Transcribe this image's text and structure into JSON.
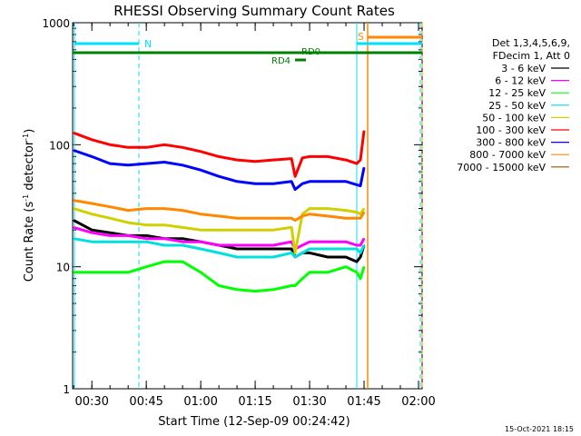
{
  "chart_data": {
    "type": "line",
    "title": "RHESSI Observing Summary Count Rates",
    "xlabel": "Start Time (12-Sep-09 00:24:42)",
    "ylabel_main": "Count Rate (s",
    "ylabel_sup1": "-1",
    "ylabel_mid": " detector",
    "ylabel_sup2": "-1",
    "ylabel_end": ")",
    "yscale": "log",
    "ylim": [
      1,
      1000
    ],
    "xlim": [
      "00:24:42",
      "02:01:00"
    ],
    "x_ticks": [
      "00:30",
      "00:45",
      "01:00",
      "01:15",
      "01:30",
      "01:45",
      "02:00"
    ],
    "y_ticks": [
      "1",
      "10",
      "100",
      "1000"
    ],
    "legend_position": "top-right",
    "legend_header": [
      "Det 1,3,4,5,6,9,",
      "FDecim 1, Att 0"
    ],
    "series": [
      {
        "name": "3 - 6 keV",
        "color": "#000000",
        "x": [
          "00:25",
          "00:30",
          "00:35",
          "00:40",
          "00:45",
          "00:50",
          "00:55",
          "01:00",
          "01:05",
          "01:10",
          "01:15",
          "01:20",
          "01:25",
          "01:26",
          "01:28",
          "01:30",
          "01:35",
          "01:40",
          "01:43",
          "01:44",
          "01:45"
        ],
        "y": [
          24,
          20,
          19,
          18,
          18,
          17,
          17,
          16,
          15,
          14,
          14,
          14,
          14,
          12,
          13,
          13,
          12,
          12,
          11,
          12,
          15
        ]
      },
      {
        "name": "6 - 12 keV",
        "color": "#ff00ff",
        "x": [
          "00:25",
          "00:30",
          "00:35",
          "00:40",
          "00:45",
          "00:50",
          "00:55",
          "01:00",
          "01:05",
          "01:10",
          "01:15",
          "01:20",
          "01:25",
          "01:26",
          "01:28",
          "01:30",
          "01:35",
          "01:40",
          "01:43",
          "01:44",
          "01:45"
        ],
        "y": [
          21,
          19,
          18,
          18,
          17,
          17,
          16,
          16,
          15,
          15,
          15,
          15,
          16,
          14,
          15,
          16,
          16,
          16,
          15,
          15,
          17
        ]
      },
      {
        "name": "12 - 25 keV",
        "color": "#00ff00",
        "x": [
          "00:25",
          "00:30",
          "00:35",
          "00:40",
          "00:45",
          "00:50",
          "00:55",
          "01:00",
          "01:05",
          "01:10",
          "01:15",
          "01:20",
          "01:25",
          "01:26",
          "01:28",
          "01:30",
          "01:35",
          "01:40",
          "01:43",
          "01:44",
          "01:45"
        ],
        "y": [
          9,
          9,
          9,
          9,
          10,
          11,
          11,
          9,
          7,
          6.5,
          6.3,
          6.5,
          7,
          7,
          8,
          9,
          9,
          10,
          9,
          8,
          10
        ]
      },
      {
        "name": "25 - 50 keV",
        "color": "#00e0e0",
        "x": [
          "00:25",
          "00:30",
          "00:35",
          "00:40",
          "00:45",
          "00:50",
          "00:55",
          "01:00",
          "01:05",
          "01:10",
          "01:15",
          "01:20",
          "01:25",
          "01:26",
          "01:28",
          "01:30",
          "01:35",
          "01:40",
          "01:43",
          "01:44",
          "01:45"
        ],
        "y": [
          17,
          16,
          16,
          16,
          16,
          15,
          15,
          14,
          13,
          12,
          12,
          12,
          13,
          12,
          13,
          14,
          14,
          14,
          14,
          13,
          15
        ]
      },
      {
        "name": "50 - 100 keV",
        "color": "#d0d000",
        "x": [
          "00:25",
          "00:30",
          "00:35",
          "00:40",
          "00:45",
          "00:50",
          "00:55",
          "01:00",
          "01:05",
          "01:10",
          "01:15",
          "01:20",
          "01:25",
          "01:26",
          "01:28",
          "01:30",
          "01:35",
          "01:40",
          "01:43",
          "01:44",
          "01:45"
        ],
        "y": [
          30,
          27,
          25,
          23,
          22,
          22,
          21,
          20,
          20,
          20,
          20,
          20,
          21,
          13,
          27,
          30,
          30,
          29,
          28,
          27,
          30
        ]
      },
      {
        "name": "100 - 300 keV",
        "color": "#ff0000",
        "x": [
          "00:25",
          "00:30",
          "00:35",
          "00:40",
          "00:45",
          "00:50",
          "00:55",
          "01:00",
          "01:05",
          "01:10",
          "01:15",
          "01:20",
          "01:25",
          "01:26",
          "01:28",
          "01:30",
          "01:35",
          "01:40",
          "01:43",
          "01:44",
          "01:45"
        ],
        "y": [
          125,
          110,
          100,
          95,
          95,
          100,
          95,
          88,
          80,
          75,
          73,
          75,
          77,
          55,
          78,
          80,
          80,
          75,
          70,
          75,
          130
        ]
      },
      {
        "name": "300 - 800 keV",
        "color": "#0000ff",
        "x": [
          "00:25",
          "00:30",
          "00:35",
          "00:40",
          "00:45",
          "00:50",
          "00:55",
          "01:00",
          "01:05",
          "01:10",
          "01:15",
          "01:20",
          "01:25",
          "01:26",
          "01:28",
          "01:30",
          "01:35",
          "01:40",
          "01:43",
          "01:44",
          "01:45"
        ],
        "y": [
          90,
          80,
          70,
          68,
          70,
          72,
          68,
          62,
          55,
          50,
          48,
          48,
          50,
          43,
          48,
          50,
          50,
          50,
          47,
          46,
          65
        ]
      },
      {
        "name": "800 - 7000 keV",
        "color": "#ff8800",
        "x": [
          "00:25",
          "00:30",
          "00:35",
          "00:40",
          "00:45",
          "00:50",
          "00:55",
          "01:00",
          "01:05",
          "01:10",
          "01:15",
          "01:20",
          "01:25",
          "01:26",
          "01:28",
          "01:30",
          "01:35",
          "01:40",
          "01:43",
          "01:44",
          "01:45"
        ],
        "y": [
          35,
          33,
          31,
          29,
          30,
          30,
          29,
          27,
          26,
          25,
          25,
          25,
          25,
          24,
          26,
          27,
          26,
          25,
          25,
          25,
          28
        ]
      },
      {
        "name": "7000 - 15000 keV",
        "color": "#a05000",
        "x": [],
        "y": []
      }
    ],
    "annotations": [
      {
        "text": "N",
        "color": "#00e0ff"
      },
      {
        "text": "S",
        "color": "#ff8800"
      },
      {
        "text": "RD0",
        "color": "#008000"
      },
      {
        "text": "RD4",
        "color": "#008000"
      }
    ],
    "footer_timestamp": "15-Oct-2021 18:15"
  }
}
